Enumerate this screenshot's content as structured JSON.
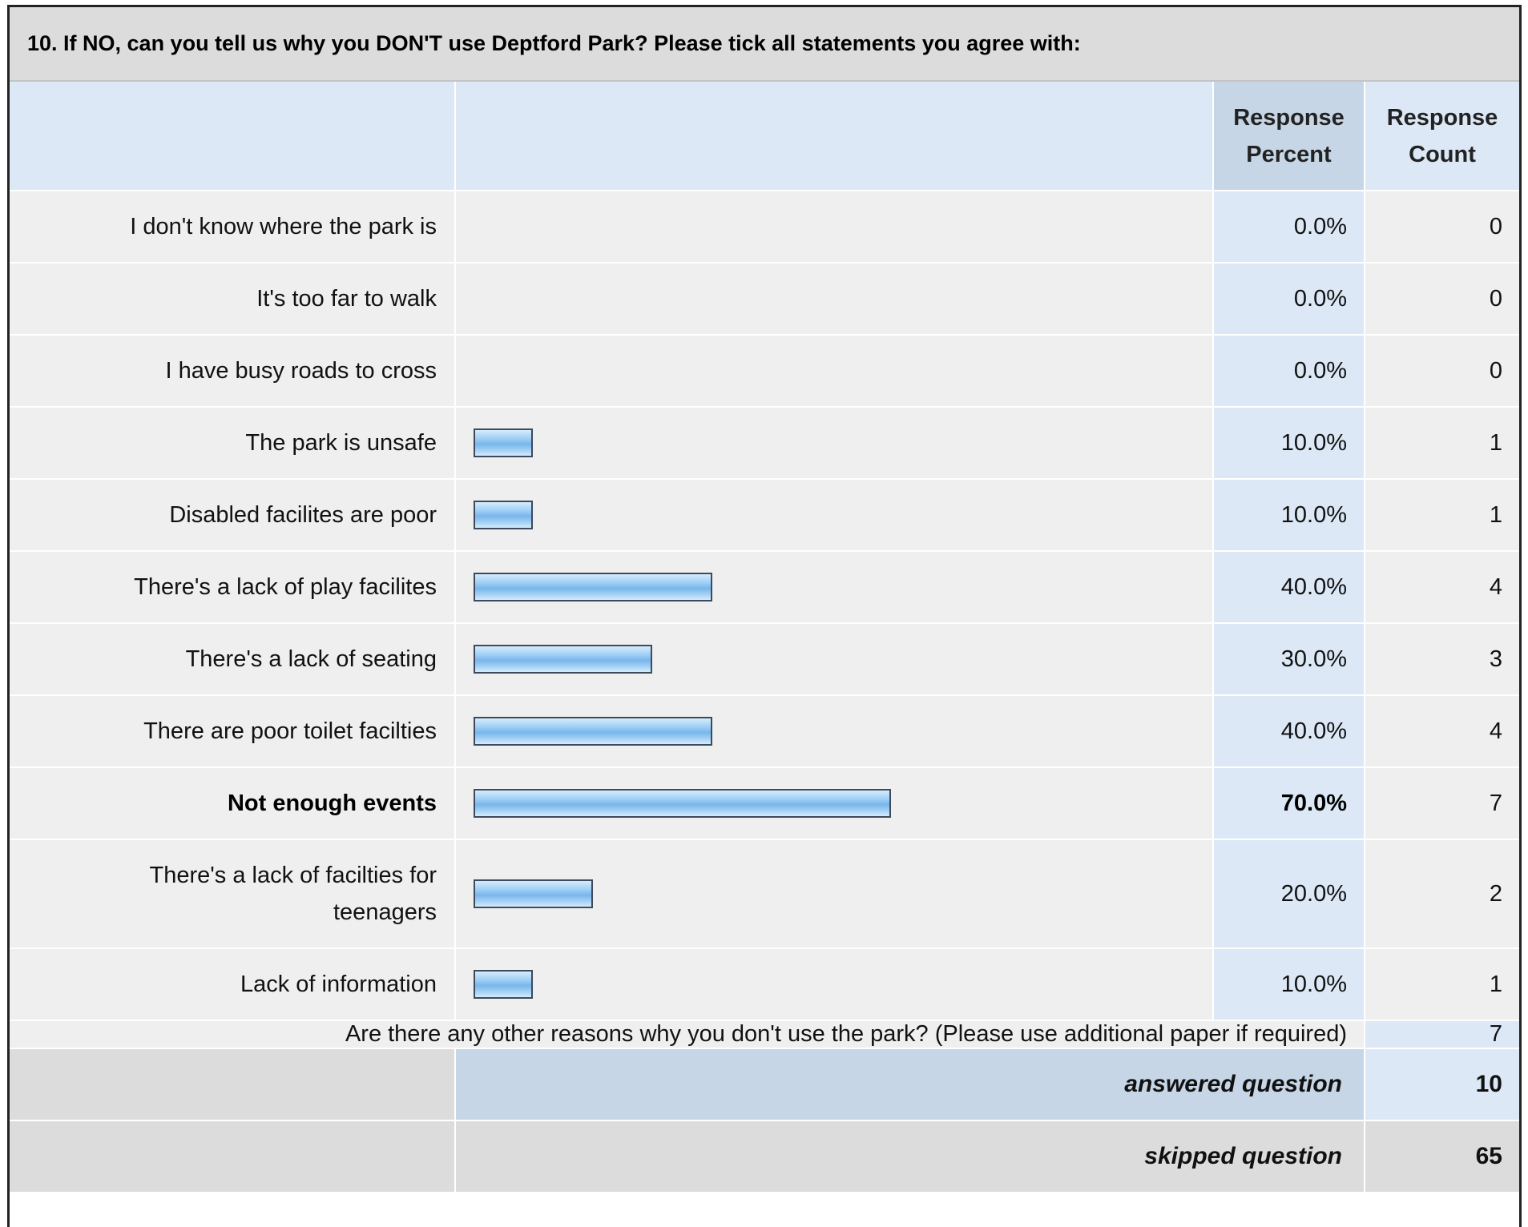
{
  "question": "10. If NO, can you tell us why you DON'T use Deptford Park? Please tick all statements you agree with:",
  "headers": {
    "percent": "Response Percent",
    "count": "Response Count"
  },
  "chart_data": {
    "type": "bar",
    "title": "10. If NO, can you tell us why you DON'T use Deptford Park? Please tick all statements you agree with:",
    "orientation": "horizontal",
    "xlim": [
      0,
      100
    ],
    "categories": [
      "I don't know where the park is",
      "It's too far to walk",
      "I have busy roads to cross",
      "The park is unsafe",
      "Disabled facilites are poor",
      "There's a lack of play facilites",
      "There's a lack of seating",
      "There are poor toilet facilties",
      "Not enough events",
      "There's a lack of facilties for teenagers",
      "Lack of information"
    ],
    "values": [
      0,
      0,
      0,
      10,
      10,
      40,
      30,
      40,
      70,
      20,
      10
    ],
    "percent_labels": [
      "0.0%",
      "0.0%",
      "0.0%",
      "10.0%",
      "10.0%",
      "40.0%",
      "30.0%",
      "40.0%",
      "70.0%",
      "20.0%",
      "10.0%"
    ],
    "counts": [
      "0",
      "0",
      "0",
      "1",
      "1",
      "4",
      "3",
      "4",
      "7",
      "2",
      "1"
    ],
    "highlighted": [
      false,
      false,
      false,
      false,
      false,
      false,
      false,
      false,
      true,
      false,
      false
    ],
    "bar_color": "#9ccdf6"
  },
  "other": {
    "label": "Are there any other reasons why you don't use the park? (Please use additional paper if required)",
    "count": "7"
  },
  "summary": {
    "answered_label": "answered question",
    "answered_count": "10",
    "skipped_label": "skipped question",
    "skipped_count": "65"
  }
}
